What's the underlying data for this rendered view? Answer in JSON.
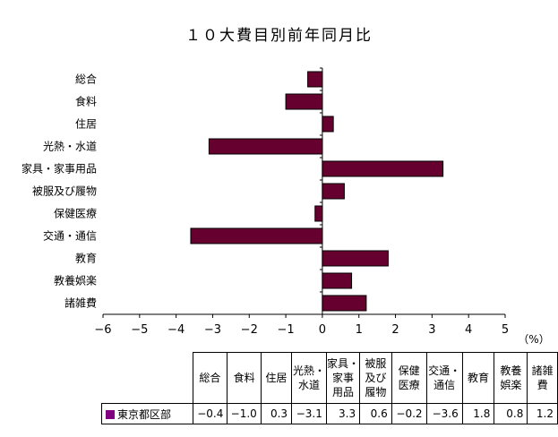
{
  "chart_data": {
    "type": "bar",
    "orientation": "horizontal",
    "title": "１０大費目別前年同月比",
    "unit_label": "（%）",
    "categories": [
      "総合",
      "食料",
      "住居",
      "光熱・水道",
      "家具・家事用品",
      "被服及び履物",
      "保健医療",
      "交通・通信",
      "教育",
      "教養娯楽",
      "諸雑費"
    ],
    "series": [
      {
        "name": "東京都区部",
        "values": [
          -0.4,
          -1.0,
          0.3,
          -3.1,
          3.3,
          0.6,
          -0.2,
          -3.6,
          1.8,
          0.8,
          1.2
        ]
      }
    ],
    "value_labels": [
      "−0.4",
      "−1.0",
      "0.3",
      "−3.1",
      "3.3",
      "0.6",
      "−0.2",
      "−3.6",
      "1.8",
      "0.8",
      "1.2"
    ],
    "xlim": [
      -6,
      5
    ],
    "xticks": [
      -6,
      -5,
      -4,
      -3,
      -2,
      -1,
      0,
      1,
      2,
      3,
      4,
      5
    ],
    "grid": false,
    "colors": {
      "bar_fill": "#66002e",
      "bar_stroke": "#000000",
      "legend_swatch": "#800080"
    }
  },
  "table": {
    "headers": [
      [
        "総合"
      ],
      [
        "食料"
      ],
      [
        "住居"
      ],
      [
        "光熱・",
        "水道"
      ],
      [
        "家具・",
        "家事",
        "用品"
      ],
      [
        "被服",
        "及び",
        "履物"
      ],
      [
        "保健",
        "医療"
      ],
      [
        "交通・",
        "通信"
      ],
      [
        "教育"
      ],
      [
        "教養",
        "娯楽"
      ],
      [
        "諸雑",
        "費"
      ]
    ],
    "row_label": "東京都区部"
  }
}
